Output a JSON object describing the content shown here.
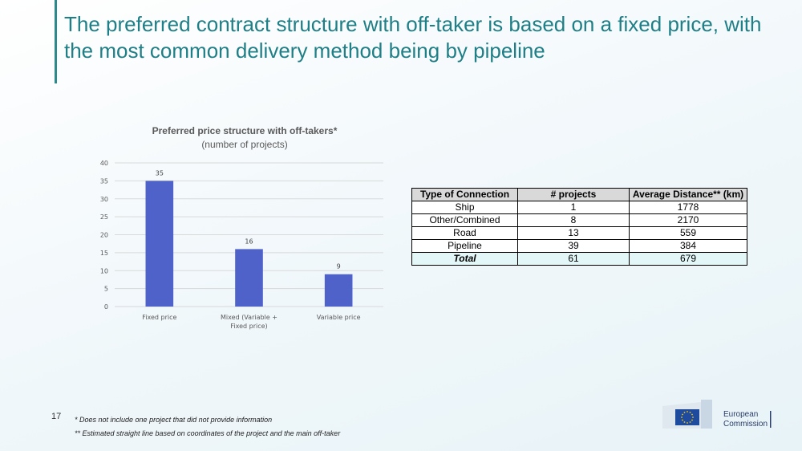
{
  "slide": {
    "title": "The preferred contract structure with off-taker is based on a fixed price, with the most common delivery method being by pipeline",
    "page_number": "17"
  },
  "chart_data": {
    "type": "bar",
    "title": "Preferred price structure with off-takers*",
    "subtitle": "(number of projects)",
    "categories": [
      "Fixed price",
      "Mixed (Variable + Fixed price)",
      "Variable price"
    ],
    "values": [
      35,
      16,
      9
    ],
    "ylim": [
      0,
      40
    ],
    "yticks": [
      0,
      5,
      10,
      15,
      20,
      25,
      30,
      35,
      40
    ],
    "bar_color": "#4f62c9",
    "grid": true,
    "legend": "none"
  },
  "table": {
    "headers": [
      "Type of Connection",
      "# projects",
      "Average Distance** (km)"
    ],
    "rows": [
      [
        "Ship",
        "1",
        "1778"
      ],
      [
        "Other/Combined",
        "8",
        "2170"
      ],
      [
        "Road",
        "13",
        "559"
      ],
      [
        "Pipeline",
        "39",
        "384"
      ]
    ],
    "total": [
      "Total",
      "61",
      "679"
    ]
  },
  "footnotes": {
    "note1": "* Does not include one project that did not provide information",
    "note2": "** Estimated straight line based on coordinates of the project and the main off-taker"
  },
  "logo": {
    "line1": "European",
    "line2": "Commission"
  },
  "colors": {
    "accent": "#2a8a8c",
    "title": "#1f7f86",
    "total_row": "#e3f6f8"
  }
}
